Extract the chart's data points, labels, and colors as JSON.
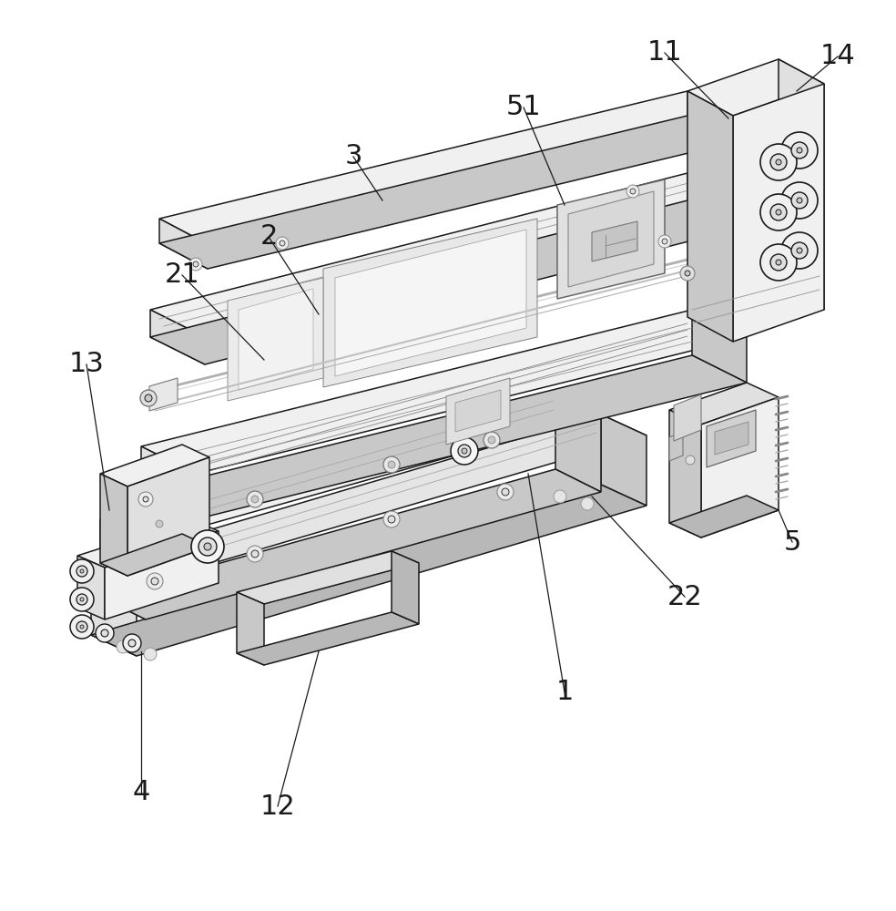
{
  "background_color": "#ffffff",
  "line_color": "#1a1a1a",
  "figsize": [
    9.84,
    10.0
  ],
  "dpi": 100,
  "label_fontsize": 22,
  "ann_lw": 0.9,
  "lw_main": 1.1,
  "lw_thin": 0.65,
  "fill_light": "#f0f0f0",
  "fill_mid": "#e0e0e0",
  "fill_dark": "#c8c8c8",
  "fill_darker": "#b8b8b8"
}
